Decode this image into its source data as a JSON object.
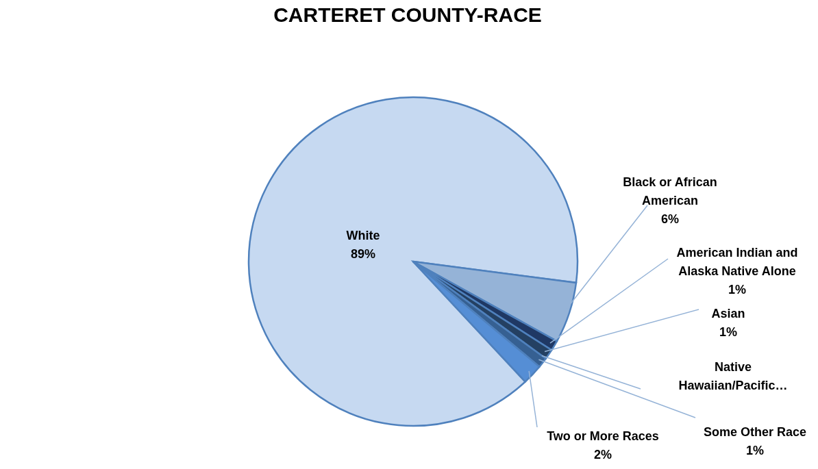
{
  "chart_data": {
    "type": "pie",
    "title": "CARTERET COUNTY-RACE",
    "categories": [
      "White",
      "Black or African American",
      "American Indian and Alaska Native Alone",
      "Asian",
      "Native Hawaiian/Pacific…",
      "Some Other Race",
      "Two or More Races"
    ],
    "values": [
      89,
      6,
      1,
      1,
      0,
      1,
      2
    ],
    "value_labels": [
      "89%",
      "6%",
      "1%",
      "1%",
      null,
      "1%",
      "2%"
    ],
    "colors": [
      "#c6d9f1",
      "#95b3d7",
      "#1f3864",
      "#244062",
      null,
      "#366092",
      "#558ed5"
    ],
    "legend": false
  }
}
